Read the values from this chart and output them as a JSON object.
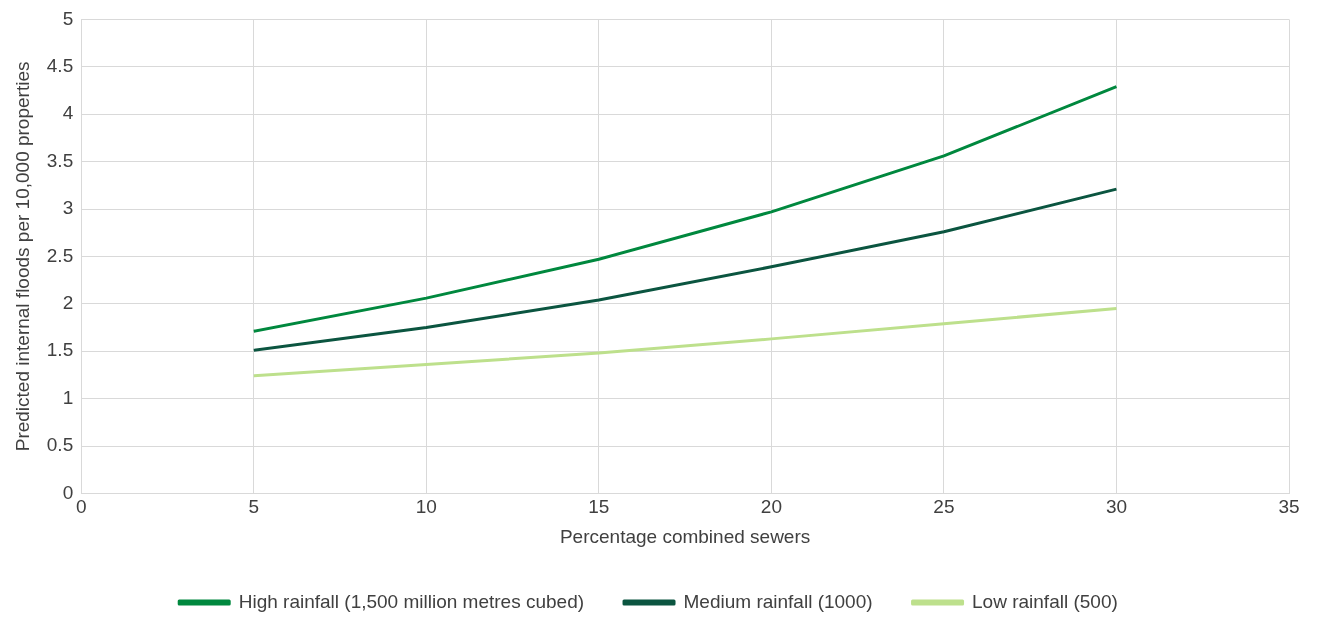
{
  "chart_data": {
    "type": "line",
    "xlabel": "Percentage combined sewers",
    "ylabel": "Predicted internal floods per 10,000 properties",
    "x": [
      5,
      10,
      15,
      20,
      25,
      30
    ],
    "series": [
      {
        "name": "High rainfall (1,500 million metres cubed)",
        "color": "#00883e",
        "values": [
          1.71,
          2.06,
          2.47,
          2.97,
          3.56,
          4.29
        ]
      },
      {
        "name": "Medium rainfall (1000)",
        "color": "#0b5540",
        "values": [
          1.51,
          1.75,
          2.04,
          2.39,
          2.76,
          3.21
        ]
      },
      {
        "name": "Low rainfall (500)",
        "color": "#bde08c",
        "values": [
          1.24,
          1.36,
          1.48,
          1.63,
          1.79,
          1.95
        ]
      }
    ],
    "xlim": [
      0,
      35
    ],
    "xticks": [
      0,
      5,
      10,
      15,
      20,
      25,
      30,
      35
    ],
    "ylim": [
      0,
      5
    ],
    "yticks": [
      0,
      0.5,
      1,
      1.5,
      2,
      2.5,
      3,
      3.5,
      4,
      4.5,
      5
    ],
    "grid": true,
    "legend": "bottom",
    "marker": "none",
    "line_style": "solid"
  }
}
